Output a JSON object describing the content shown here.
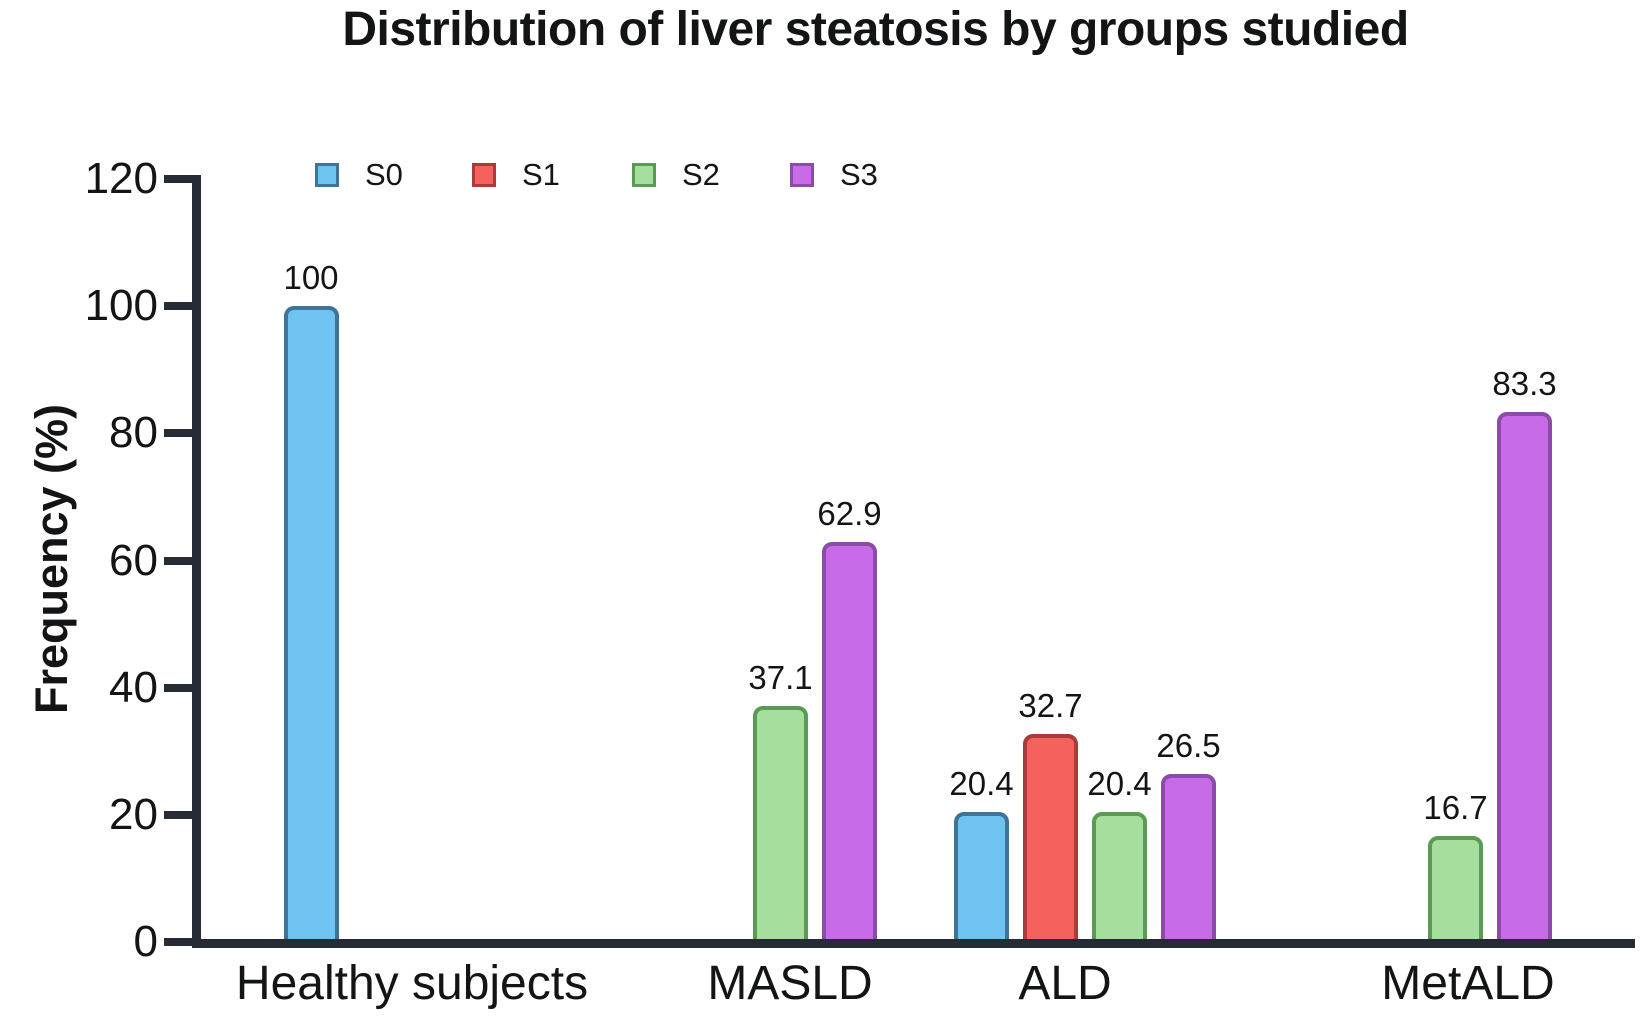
{
  "chart_data": {
    "type": "bar",
    "title": "Distribution of liver steatosis by groups studied",
    "ylabel": "Frequency (%)",
    "xlabel": "",
    "ylim": [
      0,
      120
    ],
    "yticks": [
      0,
      20,
      40,
      60,
      80,
      100,
      120
    ],
    "grid": false,
    "legend_position": "top-left-inside",
    "value_labels": true,
    "categories": [
      "Healthy subjects",
      "MASLD",
      "ALD",
      "MetALD"
    ],
    "series": [
      {
        "name": "S0",
        "fill": "#6EC3F0",
        "border": "#3F7397",
        "values": [
          100,
          null,
          20.4,
          null
        ]
      },
      {
        "name": "S1",
        "fill": "#F5615D",
        "border": "#A93C39",
        "values": [
          null,
          null,
          32.7,
          null
        ]
      },
      {
        "name": "S2",
        "fill": "#A6DE9D",
        "border": "#5A9B54",
        "values": [
          null,
          37.1,
          20.4,
          16.7
        ]
      },
      {
        "name": "S3",
        "fill": "#C76BE9",
        "border": "#8A4CA6",
        "values": [
          null,
          62.9,
          26.5,
          83.3
        ]
      }
    ],
    "value_label_texts": {
      "Healthy subjects": {
        "S0": "100"
      },
      "MASLD": {
        "S2": "37.1",
        "S3": "62.9"
      },
      "ALD": {
        "S0": "20.4",
        "S1": "32.7",
        "S2": "20.4",
        "S3": "26.5"
      },
      "MetALD": {
        "S2": "16.7",
        "S3": "83.3"
      }
    },
    "axis_color": "#262B35",
    "text_color": "#131416",
    "background_color": "#FFFFFF"
  }
}
